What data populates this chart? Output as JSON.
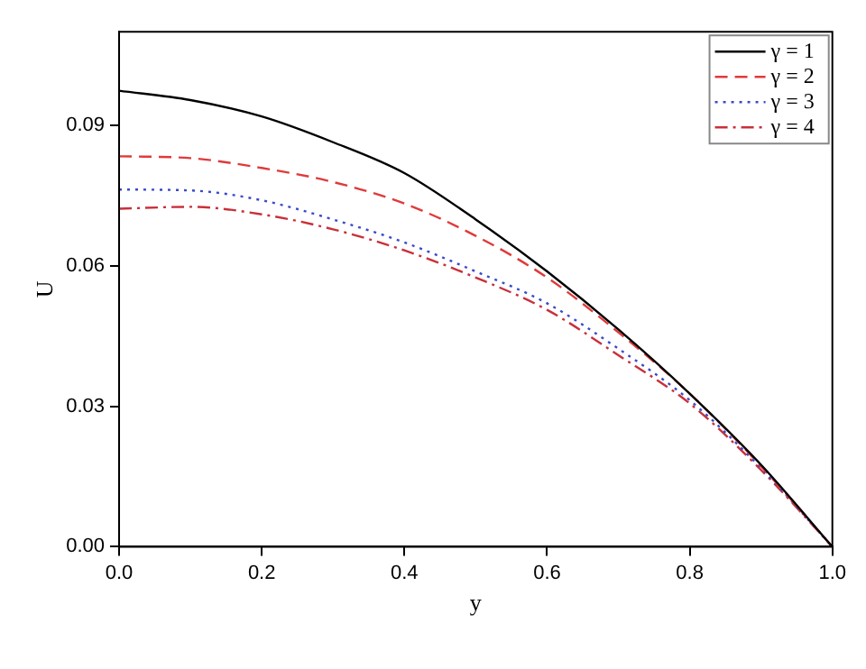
{
  "chart_data": {
    "type": "line",
    "xlabel": "y",
    "ylabel": "U",
    "x": [
      0,
      0.1,
      0.2,
      0.3,
      0.4,
      0.5,
      0.6,
      0.7,
      0.8,
      0.9,
      1.0
    ],
    "series": [
      {
        "name": "γ = 1",
        "color": "#000000",
        "line_style": "solid",
        "values": [
          0.0974,
          0.0954,
          0.0919,
          0.0864,
          0.0798,
          0.0699,
          0.0588,
          0.0464,
          0.0327,
          0.0175,
          0
        ]
      },
      {
        "name": "γ = 2",
        "color": "#e03a3a",
        "line_style": "dashed",
        "values": [
          0.0834,
          0.083,
          0.0809,
          0.0779,
          0.0733,
          0.0664,
          0.0575,
          0.0458,
          0.0327,
          0.0172,
          0
        ]
      },
      {
        "name": "γ = 3",
        "color": "#3a4ac8",
        "line_style": "dotted",
        "values": [
          0.0763,
          0.0761,
          0.074,
          0.0699,
          0.065,
          0.0588,
          0.052,
          0.0423,
          0.0313,
          0.0168,
          0
        ]
      },
      {
        "name": "γ = 4",
        "color": "#c8303a",
        "line_style": "dashdot",
        "values": [
          0.0722,
          0.0726,
          0.071,
          0.0678,
          0.0633,
          0.0575,
          0.0506,
          0.0409,
          0.0306,
          0.0164,
          0
        ]
      }
    ],
    "xlim": [
      0,
      1
    ],
    "xticks": [
      {
        "value": 0,
        "label": "0.0"
      },
      {
        "value": 0.2,
        "label": "0.2"
      },
      {
        "value": 0.4,
        "label": "0.4"
      },
      {
        "value": 0.6,
        "label": "0.6"
      },
      {
        "value": 0.8,
        "label": "0.8"
      },
      {
        "value": 1,
        "label": "1.0"
      }
    ],
    "ylim": [
      0,
      0.11
    ],
    "yticks": [
      {
        "value": 0,
        "label": "0.00"
      },
      {
        "value": 0.03,
        "label": "0.03"
      },
      {
        "value": 0.06,
        "label": "0.06"
      },
      {
        "value": 0.09,
        "label": "0.09"
      }
    ],
    "grid": false,
    "legend": "top right",
    "marker": "none"
  }
}
